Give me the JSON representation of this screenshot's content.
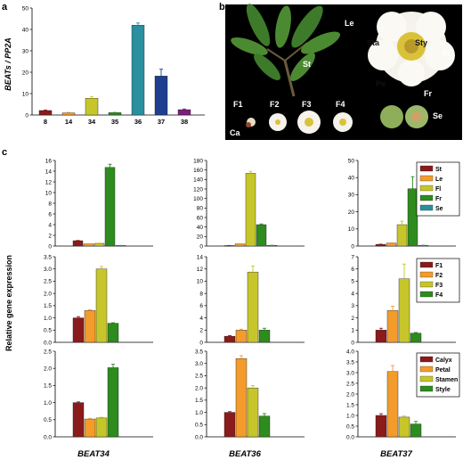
{
  "panel_labels": {
    "a": "a",
    "b": "b",
    "c": "c"
  },
  "panel_b": {
    "labels_white": [
      "Le",
      "St",
      "Fl",
      "F1",
      "F2",
      "F3",
      "F4",
      "Ca",
      "Sta",
      "Sty",
      "Pe",
      "Fr",
      "Se"
    ]
  },
  "colors": {
    "St": "#8b1a1a",
    "Le": "#f39c2b",
    "Fl": "#c6c62a",
    "Fr": "#2e8b1e",
    "Se": "#2a8f9f",
    "F1": "#8b1a1a",
    "F2": "#f39c2b",
    "F3": "#c6c62a",
    "F4": "#2e8b1e",
    "Calyx": "#8b1a1a",
    "Petal": "#f39c2b",
    "Stamen": "#c6c62a",
    "Style": "#2e8b1e"
  },
  "c_labels": {
    "ylabel": "Relative gene expression",
    "genes": [
      "BEAT34",
      "BEAT36",
      "BEAT37"
    ],
    "legend_rows": [
      [
        "St",
        "Le",
        "Fl",
        "Fr",
        "Se"
      ],
      [
        "F1",
        "F2",
        "F3",
        "F4"
      ],
      [
        "Calyx",
        "Petal",
        "Stamen",
        "Style"
      ]
    ]
  },
  "chart_data": [
    {
      "id": "a",
      "type": "bar",
      "ylabel": "BEATs / PP2A",
      "categories": [
        "8",
        "14",
        "34",
        "35",
        "36",
        "37",
        "38"
      ],
      "values": [
        2.1,
        1.0,
        7.8,
        1.1,
        42.0,
        18.2,
        2.5
      ],
      "errors": [
        0.2,
        0.2,
        0.7,
        0.1,
        1.0,
        3.2,
        0.3
      ],
      "colors": [
        "#8b1a1a",
        "#f39c2b",
        "#c6c62a",
        "#2e8b1e",
        "#2a8f9f",
        "#1e3f8f",
        "#7a1e7a"
      ],
      "ylim": [
        0,
        50
      ],
      "yticks": [
        0,
        10,
        20,
        30,
        40,
        50
      ]
    },
    {
      "id": "c-r1-BEAT34",
      "type": "bar",
      "categories": [
        "St",
        "Le",
        "Fl",
        "Fr",
        "Se"
      ],
      "values": [
        1.0,
        0.4,
        0.5,
        14.7,
        0.1
      ],
      "errors": [
        0.05,
        0.05,
        0.05,
        0.6,
        0.02
      ],
      "ylim": [
        0,
        16
      ],
      "yticks": [
        0,
        2,
        4,
        6,
        8,
        10,
        12,
        14,
        16
      ]
    },
    {
      "id": "c-r1-BEAT36",
      "type": "bar",
      "categories": [
        "St",
        "Le",
        "Fl",
        "Fr",
        "Se"
      ],
      "values": [
        1.0,
        4.5,
        153.0,
        45.0,
        1.5
      ],
      "errors": [
        0.1,
        0.5,
        4.0,
        1.5,
        0.2
      ],
      "ylim": [
        0,
        180
      ],
      "yticks": [
        0,
        20,
        40,
        60,
        80,
        100,
        120,
        140,
        160,
        180
      ]
    },
    {
      "id": "c-r1-BEAT37",
      "type": "bar",
      "categories": [
        "St",
        "Le",
        "Fl",
        "Fr",
        "Se"
      ],
      "values": [
        1.0,
        1.7,
        12.5,
        33.5,
        0.4
      ],
      "errors": [
        0.1,
        0.2,
        2.0,
        7.0,
        0.1
      ],
      "ylim": [
        0,
        50
      ],
      "yticks": [
        0,
        10,
        20,
        30,
        40,
        50
      ]
    },
    {
      "id": "c-r2-BEAT34",
      "type": "bar",
      "categories": [
        "F1",
        "F2",
        "F3",
        "F4"
      ],
      "values": [
        1.0,
        1.3,
        3.0,
        0.78
      ],
      "errors": [
        0.05,
        0.03,
        0.1,
        0.02
      ],
      "ylim": [
        0,
        3.5
      ],
      "yticks": [
        0,
        0.5,
        1.0,
        1.5,
        2.0,
        2.5,
        3.0,
        3.5
      ]
    },
    {
      "id": "c-r2-BEAT36",
      "type": "bar",
      "categories": [
        "F1",
        "F2",
        "F3",
        "F4"
      ],
      "values": [
        1.0,
        2.0,
        11.5,
        2.0
      ],
      "errors": [
        0.1,
        0.15,
        1.0,
        0.3
      ],
      "ylim": [
        0,
        14
      ],
      "yticks": [
        0,
        2,
        4,
        6,
        8,
        10,
        12,
        14
      ]
    },
    {
      "id": "c-r2-BEAT37",
      "type": "bar",
      "categories": [
        "F1",
        "F2",
        "F3",
        "F4"
      ],
      "values": [
        1.0,
        2.6,
        5.2,
        0.75
      ],
      "errors": [
        0.15,
        0.35,
        1.2,
        0.05
      ],
      "ylim": [
        0,
        7
      ],
      "yticks": [
        0,
        1,
        2,
        3,
        4,
        5,
        6,
        7
      ]
    },
    {
      "id": "c-r3-BEAT34",
      "type": "bar",
      "categories": [
        "Calyx",
        "Petal",
        "Stamen",
        "Style"
      ],
      "values": [
        1.0,
        0.52,
        0.55,
        2.02
      ],
      "errors": [
        0.02,
        0.02,
        0.02,
        0.1
      ],
      "ylim": [
        0,
        2.5
      ],
      "yticks": [
        0,
        0.5,
        1.0,
        1.5,
        2.0,
        2.5
      ]
    },
    {
      "id": "c-r3-BEAT36",
      "type": "bar",
      "categories": [
        "Calyx",
        "Petal",
        "Stamen",
        "Style"
      ],
      "values": [
        1.0,
        3.2,
        2.0,
        0.85
      ],
      "errors": [
        0.03,
        0.12,
        0.1,
        0.1
      ],
      "ylim": [
        0,
        3.5
      ],
      "yticks": [
        0,
        0.5,
        1.0,
        1.5,
        2.0,
        2.5,
        3.0,
        3.5
      ]
    },
    {
      "id": "c-r3-BEAT37",
      "type": "bar",
      "categories": [
        "Calyx",
        "Petal",
        "Stamen",
        "Style"
      ],
      "values": [
        1.0,
        3.05,
        0.92,
        0.6
      ],
      "errors": [
        0.08,
        0.28,
        0.05,
        0.12
      ],
      "ylim": [
        0,
        4.0
      ],
      "yticks": [
        0,
        0.5,
        1.0,
        1.5,
        2.0,
        2.5,
        3.0,
        3.5,
        4.0
      ]
    }
  ]
}
